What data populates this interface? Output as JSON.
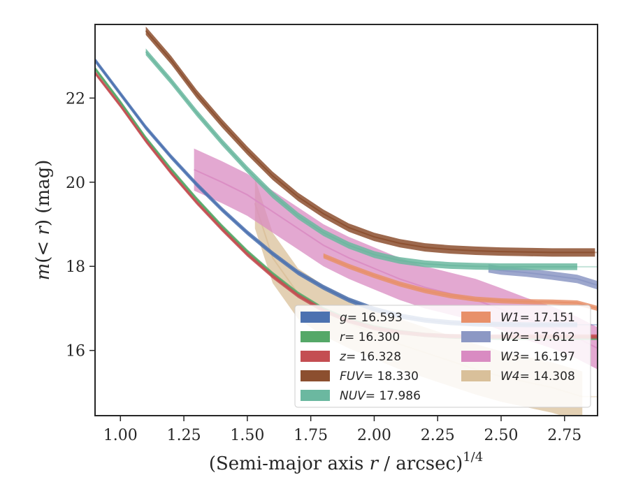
{
  "chart_data": {
    "type": "line",
    "xlabel": "(Semi-major axis r / arcsec)^{1/4}",
    "xlabel_parts": {
      "pre": "(Semi-major axis ",
      "var": "r",
      "mid": " / arcsec)",
      "sup": "1/4"
    },
    "ylabel": "m(< r) (mag)",
    "ylabel_parts": {
      "m": "m",
      "open": "(",
      "lt": "< ",
      "r": "r",
      "close": ")",
      "unit": " (mag)"
    },
    "xlim": [
      0.9,
      2.88
    ],
    "ylim": [
      23.75,
      14.45
    ],
    "y_inverted": true,
    "x_ticks": [
      "1.00",
      "1.25",
      "1.50",
      "1.75",
      "2.00",
      "2.25",
      "2.50",
      "2.75"
    ],
    "x_tick_values": [
      1.0,
      1.25,
      1.5,
      1.75,
      2.0,
      2.25,
      2.5,
      2.75
    ],
    "y_ticks": [
      "16",
      "18",
      "20",
      "22"
    ],
    "y_tick_values": [
      16,
      18,
      20,
      22
    ],
    "grid": false,
    "legend_position": "lower-right",
    "legend": [
      {
        "sym": "g",
        "value": "= 16.593",
        "color": "#4C72B0"
      },
      {
        "sym": "r",
        "value": "= 16.300",
        "color": "#55A868"
      },
      {
        "sym": "z",
        "value": "= 16.328",
        "color": "#C44E52"
      },
      {
        "sym": "FUV",
        "value": "= 18.330",
        "color": "#8C4F2F"
      },
      {
        "sym": "NUV",
        "value": "= 17.986",
        "color": "#6BB8A0"
      },
      {
        "sym": "W1",
        "value": "= 17.151",
        "color": "#E8906A"
      },
      {
        "sym": "W2",
        "value": "= 17.612",
        "color": "#8C98C4"
      },
      {
        "sym": "W3",
        "value": "= 16.197",
        "color": "#D98BC2"
      },
      {
        "sym": "W4",
        "value": "= 14.308",
        "color": "#D9C09A"
      }
    ],
    "series": [
      {
        "name": "g",
        "color": "#4C72B0",
        "x": [
          0.9,
          1.0,
          1.1,
          1.2,
          1.3,
          1.4,
          1.5,
          1.6,
          1.7,
          1.8,
          1.9,
          2.0,
          2.1,
          2.2,
          2.3,
          2.4,
          2.5,
          2.6,
          2.7,
          2.8
        ],
        "y": [
          22.9,
          22.1,
          21.3,
          20.6,
          19.95,
          19.35,
          18.8,
          18.3,
          17.85,
          17.5,
          17.2,
          16.98,
          16.82,
          16.72,
          16.66,
          16.63,
          16.62,
          16.61,
          16.61,
          16.61
        ],
        "band": 0.06,
        "extend_to": 2.8
      },
      {
        "name": "r",
        "color": "#55A868",
        "x": [
          0.9,
          1.0,
          1.1,
          1.2,
          1.3,
          1.4,
          1.5,
          1.6,
          1.7,
          1.8,
          1.9,
          2.0,
          2.1,
          2.2,
          2.3,
          2.4,
          2.5,
          2.6,
          2.7,
          2.8,
          2.88
        ],
        "y": [
          22.7,
          21.9,
          21.05,
          20.3,
          19.6,
          18.95,
          18.35,
          17.82,
          17.35,
          16.98,
          16.72,
          16.55,
          16.44,
          16.37,
          16.33,
          16.31,
          16.3,
          16.3,
          16.3,
          16.3,
          16.3
        ],
        "band": 0.05,
        "extend_to": 2.88
      },
      {
        "name": "z",
        "color": "#C44E52",
        "x": [
          0.9,
          1.0,
          1.1,
          1.2,
          1.3,
          1.4,
          1.5,
          1.6,
          1.7,
          1.8,
          1.9,
          2.0,
          2.1,
          2.2,
          2.3,
          2.4,
          2.5,
          2.6,
          2.7,
          2.8,
          2.88
        ],
        "y": [
          22.6,
          21.82,
          20.98,
          20.22,
          19.52,
          18.88,
          18.28,
          17.76,
          17.3,
          16.95,
          16.7,
          16.53,
          16.43,
          16.37,
          16.34,
          16.33,
          16.33,
          16.33,
          16.33,
          16.33,
          16.33
        ],
        "band": 0.05,
        "extend_to": 2.88
      },
      {
        "name": "FUV",
        "color": "#8C4F2F",
        "x": [
          1.1,
          1.2,
          1.3,
          1.4,
          1.5,
          1.6,
          1.7,
          1.8,
          1.9,
          2.0,
          2.1,
          2.2,
          2.3,
          2.4,
          2.5,
          2.6,
          2.7,
          2.8,
          2.87
        ],
        "y": [
          23.6,
          22.9,
          22.1,
          21.4,
          20.75,
          20.15,
          19.65,
          19.25,
          18.92,
          18.7,
          18.55,
          18.45,
          18.4,
          18.37,
          18.35,
          18.34,
          18.33,
          18.33,
          18.33
        ],
        "band": 0.1,
        "extend_to": 2.87
      },
      {
        "name": "NUV",
        "color": "#6BB8A0",
        "x": [
          1.1,
          1.2,
          1.3,
          1.4,
          1.5,
          1.6,
          1.7,
          1.8,
          1.9,
          2.0,
          2.1,
          2.2,
          2.3,
          2.4,
          2.5,
          2.6,
          2.7,
          2.8
        ],
        "y": [
          23.1,
          22.4,
          21.65,
          20.95,
          20.3,
          19.7,
          19.2,
          18.8,
          18.5,
          18.28,
          18.14,
          18.06,
          18.02,
          18.0,
          17.99,
          17.99,
          17.99,
          17.99
        ],
        "band": 0.08,
        "extend_to": 2.8
      },
      {
        "name": "W1",
        "color": "#E8906A",
        "x": [
          1.8,
          1.9,
          2.0,
          2.1,
          2.2,
          2.3,
          2.4,
          2.5,
          2.6,
          2.7,
          2.8,
          2.88
        ],
        "y": [
          18.25,
          18.0,
          17.78,
          17.58,
          17.42,
          17.3,
          17.22,
          17.18,
          17.16,
          17.15,
          17.13,
          17.0
        ],
        "band": 0.06,
        "extend_to": 2.88
      },
      {
        "name": "W2",
        "color": "#8C98C4",
        "x": [
          2.45,
          2.5,
          2.6,
          2.7,
          2.8,
          2.88
        ],
        "y": [
          17.95,
          17.9,
          17.85,
          17.78,
          17.7,
          17.55
        ],
        "band": 0.1,
        "extend_to": 2.88
      },
      {
        "name": "W3",
        "color": "#D98BC2",
        "x": [
          1.29,
          1.4,
          1.5,
          1.6,
          1.7,
          1.8,
          1.9,
          2.0,
          2.1,
          2.2,
          2.3,
          2.4,
          2.5,
          2.6,
          2.7,
          2.8,
          2.88
        ],
        "y": [
          20.3,
          20.0,
          19.7,
          19.3,
          18.9,
          18.5,
          18.2,
          17.95,
          17.7,
          17.5,
          17.35,
          17.2,
          16.98,
          16.75,
          16.55,
          16.3,
          16.05
        ],
        "band": 0.5,
        "extend_to": 2.88
      },
      {
        "name": "W4",
        "color": "#D9C09A",
        "x": [
          1.53,
          1.6,
          1.7,
          1.8,
          1.9,
          2.0,
          2.1,
          2.2,
          2.3,
          2.4,
          2.5,
          2.6,
          2.7,
          2.82
        ],
        "y": [
          19.5,
          18.2,
          17.35,
          16.95,
          16.65,
          16.4,
          16.15,
          15.95,
          15.75,
          15.55,
          15.38,
          15.25,
          15.12,
          14.9
        ],
        "band": 0.6,
        "extend_to": 2.82
      }
    ]
  }
}
